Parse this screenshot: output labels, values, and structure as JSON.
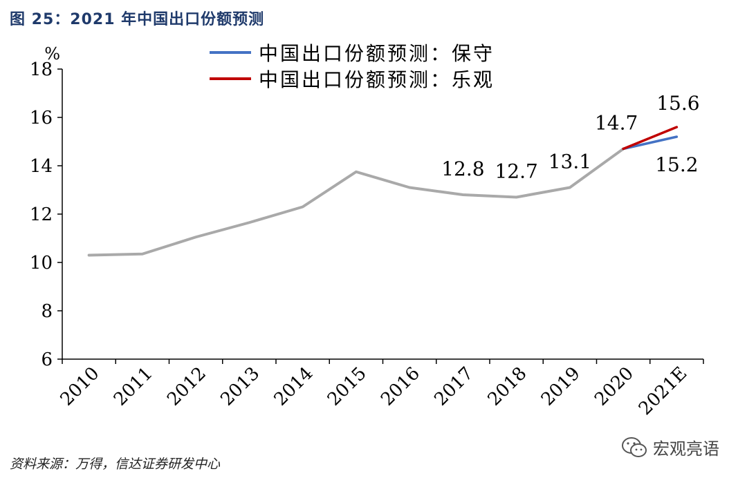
{
  "figure": {
    "title": "图 25：2021 年中国出口份额预测",
    "source": "资料来源：万得，信达证券研发中心",
    "watermark": "宏观亮语"
  },
  "chart_data": {
    "type": "line",
    "ylabel": "%",
    "ylim": [
      6,
      18
    ],
    "yticks": [
      6,
      8,
      10,
      12,
      14,
      16,
      18
    ],
    "categories": [
      "2010",
      "2011",
      "2012",
      "2013",
      "2014",
      "2015",
      "2016",
      "2017",
      "2018",
      "2019",
      "2020",
      "2021E"
    ],
    "grid": false,
    "legend_position": "top-right",
    "series": [
      {
        "name": "",
        "color": "#a9a9a9",
        "values": [
          10.3,
          10.35,
          11.05,
          11.65,
          12.3,
          13.75,
          13.1,
          12.8,
          12.7,
          13.1,
          14.7,
          null
        ],
        "labels": [
          null,
          null,
          null,
          null,
          null,
          null,
          null,
          "12.8",
          "12.7",
          "13.1",
          "14.7",
          null
        ]
      },
      {
        "name": "中国出口份额预测：保守",
        "color": "#4472c4",
        "values": [
          null,
          null,
          null,
          null,
          null,
          null,
          null,
          null,
          null,
          null,
          14.7,
          15.2
        ],
        "labels": [
          null,
          null,
          null,
          null,
          null,
          null,
          null,
          null,
          null,
          null,
          null,
          "15.2"
        ]
      },
      {
        "name": "中国出口份额预测：乐观",
        "color": "#c00000",
        "values": [
          null,
          null,
          null,
          null,
          null,
          null,
          null,
          null,
          null,
          null,
          14.7,
          15.6
        ],
        "labels": [
          null,
          null,
          null,
          null,
          null,
          null,
          null,
          null,
          null,
          null,
          null,
          "15.6"
        ]
      }
    ]
  }
}
